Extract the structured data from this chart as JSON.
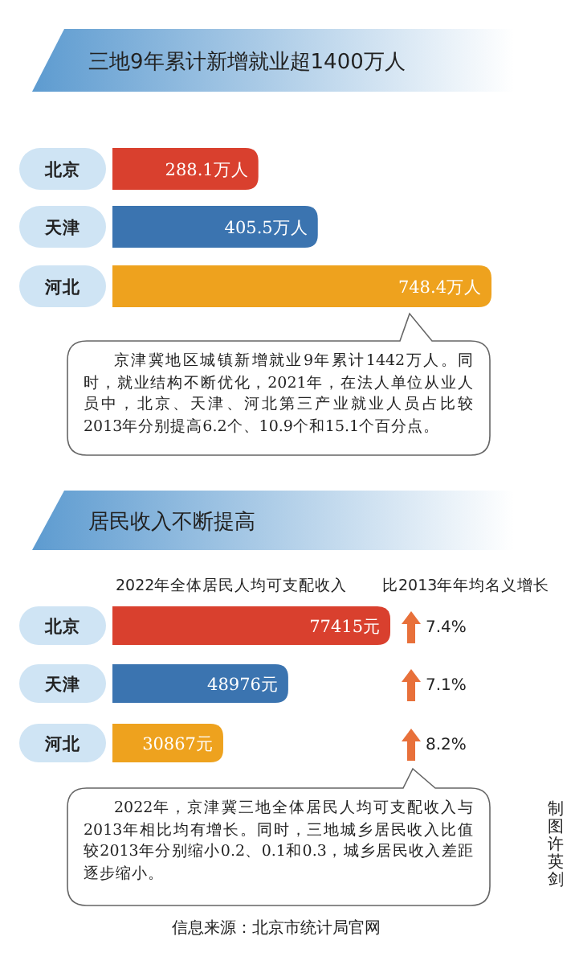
{
  "chart_data": [
    {
      "type": "bar",
      "orientation": "horizontal",
      "title": "三地9年累计新增就业超1400万人",
      "categories": [
        "北京",
        "天津",
        "河北"
      ],
      "values": [
        288.1,
        405.5,
        748.4
      ],
      "colors": [
        "#d9402e",
        "#3b74b0",
        "#eea21e"
      ],
      "data_labels": true,
      "value_labels": [
        "288.1万人",
        "405.5万人",
        "748.4万人"
      ],
      "annotations": [
        "京津冀地区城镇新增就业9年累计1442万人。同时，就业结构不断优化，2021年，在法人单位从业人员中，北京、天津、河北第三产业就业人员占比较2013年分别提高6.2个、10.9个和15.1个百分点。"
      ]
    },
    {
      "type": "bar",
      "orientation": "horizontal",
      "title": "居民收入不断提高",
      "xlabel": "2022年全体居民人均可支配收入",
      "categories": [
        "北京",
        "天津",
        "河北"
      ],
      "values": [
        77415,
        48976,
        30867
      ],
      "colors": [
        "#d9402e",
        "#3b74b0",
        "#eea21e"
      ],
      "data_labels": true,
      "value_labels": [
        "77415元",
        "48976元",
        "30867元"
      ],
      "annotations": [
        "比2013年年均名义增长",
        "7.4%",
        "7.1%",
        "8.2%",
        "2022年，京津冀三地全体居民人均可支配收入与2013年相比均有增长。同时，三地城乡居民收入比值较2013年分别缩小0.2、0.1和0.3，城乡居民收入差距逐步缩小。",
        "信息来源：北京市统计局官网",
        "制图许英剑"
      ]
    }
  ]
}
